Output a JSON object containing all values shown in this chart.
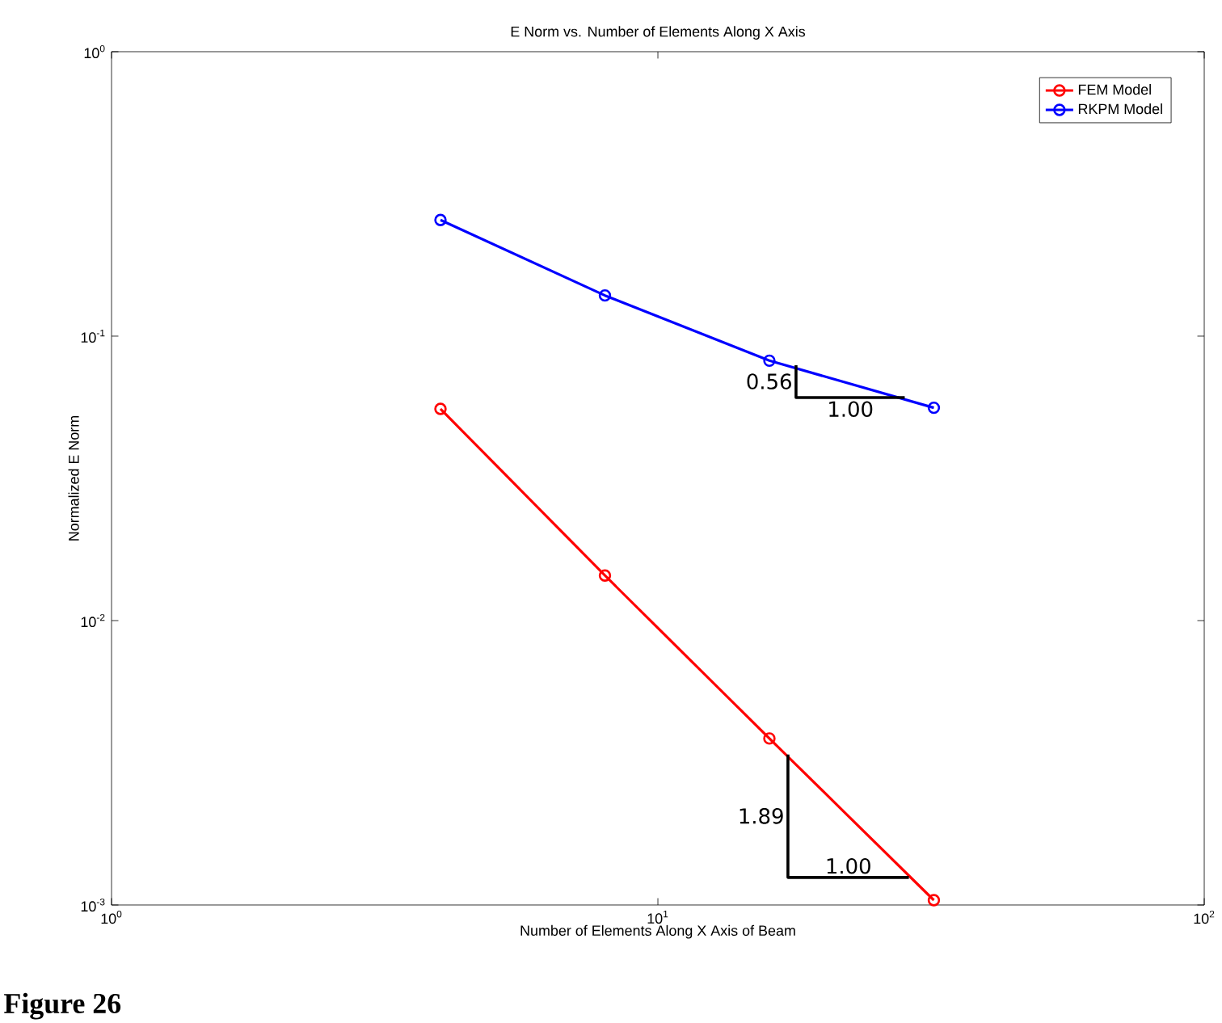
{
  "chart_data": {
    "type": "line",
    "title": "E Norm vs. Number of Elements Along X Axis",
    "xlabel": "Number of Elements Along X Axis of Beam",
    "ylabel": "Normalized E Norm",
    "log": "xy",
    "xlim": [
      1,
      100
    ],
    "ylim": [
      0.001,
      1
    ],
    "xticks": [
      {
        "value": 1,
        "label": "10$^{0}$"
      },
      {
        "value": 10,
        "label": "10$^{1}$"
      },
      {
        "value": 100,
        "label": "10$^{2}$"
      }
    ],
    "yticks": [
      {
        "value": 0.001,
        "label": "10$^{-3}$"
      },
      {
        "value": 0.01,
        "label": "10$^{-2}$"
      },
      {
        "value": 0.1,
        "label": "10$^{-1}$"
      },
      {
        "value": 1,
        "label": "10$^{0}$"
      }
    ],
    "x": [
      4,
      8,
      16,
      32
    ],
    "series": [
      {
        "name": "FEM Model",
        "color": "#ff0000",
        "values": [
          0.0555,
          0.0144,
          0.00385,
          0.00104
        ]
      },
      {
        "name": "RKPM Model",
        "color": "#0000ff",
        "values": [
          0.256,
          0.139,
          0.082,
          0.056
        ]
      },
      {
        "type": "line",
        "color": "#000000",
        "marker": "none",
        "x": [
          17.9,
          17.9,
          28.3
        ],
        "values": [
          0.079,
          0.0608,
          0.0608
        ]
      },
      {
        "type": "line",
        "color": "#000000",
        "marker": "none",
        "x": [
          17.3,
          17.3,
          28.8
        ],
        "values": [
          0.00338,
          0.00125,
          0.00125
        ]
      }
    ],
    "marker": "circle",
    "line_style": "solid",
    "legend": "top right",
    "grid": false,
    "annotations": [
      "0.56",
      "1.00",
      "1.89",
      "1.00",
      "Figure 26"
    ]
  }
}
